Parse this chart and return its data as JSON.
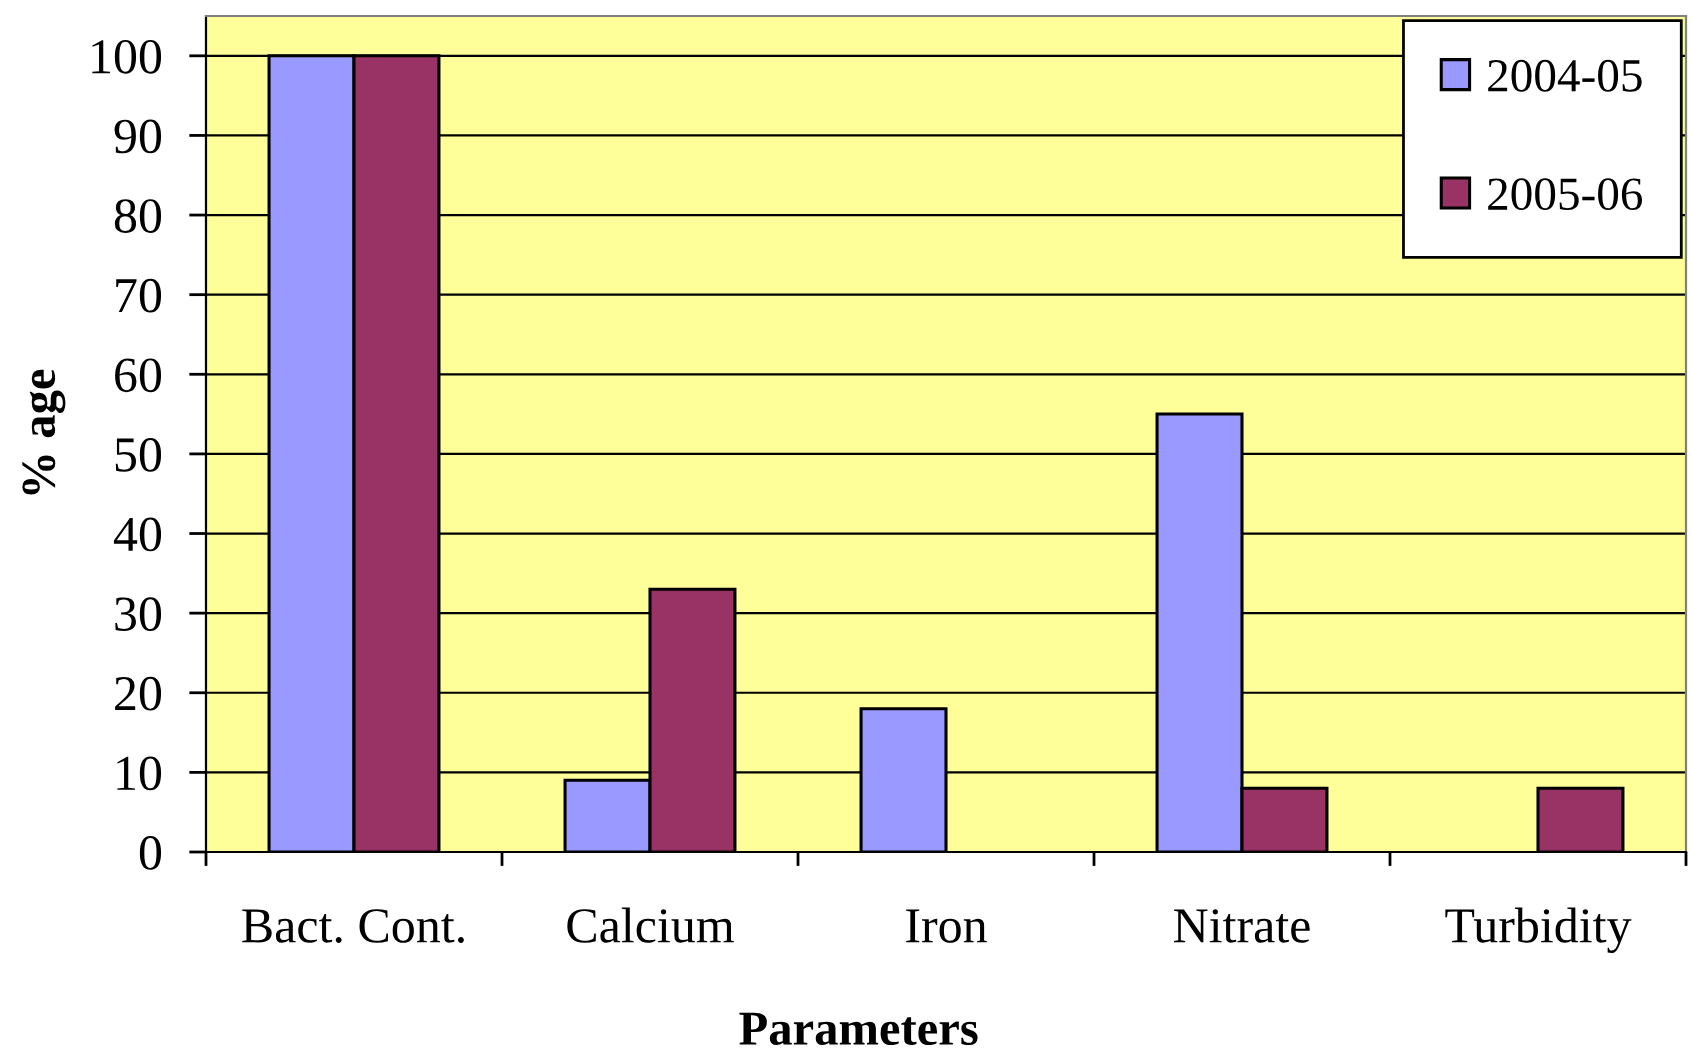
{
  "chart_data": {
    "type": "bar",
    "xlabel": "Parameters",
    "ylabel": "% age",
    "categories": [
      "Bact. Cont.",
      "Calcium",
      "Iron",
      "Nitrate",
      "Turbidity"
    ],
    "series": [
      {
        "name": "2004-05",
        "color": "#9999ff",
        "values": [
          100,
          9,
          18,
          55,
          null
        ]
      },
      {
        "name": "2005-06",
        "color": "#993366",
        "values": [
          100,
          33,
          null,
          8,
          8
        ]
      }
    ],
    "ylim": [
      0,
      105
    ],
    "yticks": [
      0,
      10,
      20,
      30,
      40,
      50,
      60,
      70,
      80,
      90,
      100
    ],
    "grid": "y",
    "legend": "top right"
  }
}
